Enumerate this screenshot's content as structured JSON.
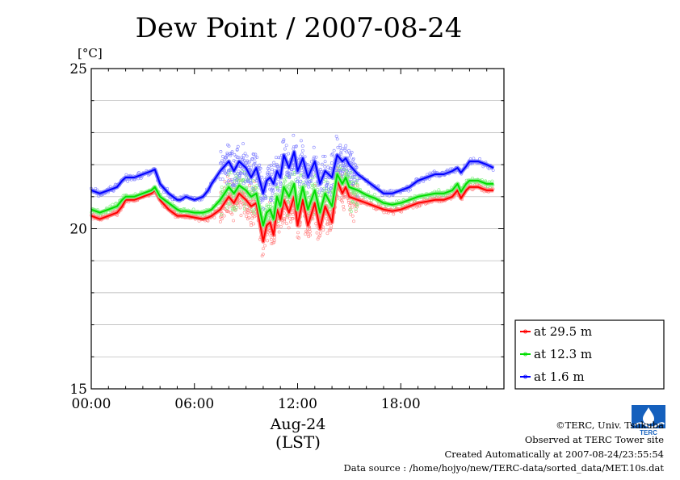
{
  "chart_data": {
    "type": "line",
    "title": "Dew Point / 2007-08-24",
    "ylabel": "[°C]",
    "xlabel": "Aug-24",
    "xlabel2": "(LST)",
    "ylim": [
      15,
      25
    ],
    "xlim": [
      0,
      24
    ],
    "y_ticks": [
      "15",
      "20",
      "25"
    ],
    "x_ticks": [
      {
        "h": 0,
        "label": "00:00"
      },
      {
        "h": 6,
        "label": "06:00"
      },
      {
        "h": 12,
        "label": "12:00"
      },
      {
        "h": 18,
        "label": "18:00"
      }
    ],
    "grid": true,
    "legend_position": "bottom-right",
    "series": [
      {
        "name": "at 29.5 m",
        "color": "#ff0000",
        "x": [
          0,
          0.5,
          1,
          1.5,
          1.8,
          2,
          2.5,
          3,
          3.5,
          3.7,
          4,
          4.5,
          5,
          5.2,
          5.5,
          6,
          6.5,
          6.8,
          7,
          7.5,
          8,
          8.3,
          8.6,
          9,
          9.3,
          9.6,
          10,
          10.2,
          10.4,
          10.6,
          10.8,
          11,
          11.2,
          11.5,
          11.8,
          12,
          12.3,
          12.6,
          13,
          13.3,
          13.6,
          14,
          14.3,
          14.6,
          14.8,
          15,
          15.5,
          16,
          16.5,
          17,
          17.5,
          18,
          18.5,
          19,
          19.5,
          20,
          20.5,
          21,
          21.3,
          21.5,
          21.8,
          22,
          22.5,
          23,
          23.4
        ],
        "y": [
          20.4,
          20.3,
          20.4,
          20.5,
          20.7,
          20.9,
          20.9,
          21.0,
          21.1,
          21.2,
          20.9,
          20.6,
          20.4,
          20.4,
          20.4,
          20.35,
          20.3,
          20.35,
          20.4,
          20.6,
          21.0,
          20.8,
          21.1,
          20.9,
          20.7,
          20.8,
          19.6,
          20.1,
          20.2,
          19.8,
          20.6,
          20.3,
          20.9,
          20.5,
          21.0,
          20.1,
          20.9,
          20.1,
          20.8,
          20.0,
          20.7,
          20.2,
          21.5,
          21.1,
          21.3,
          21.0,
          20.9,
          20.8,
          20.7,
          20.6,
          20.55,
          20.6,
          20.7,
          20.8,
          20.85,
          20.9,
          20.9,
          21.0,
          21.2,
          20.95,
          21.2,
          21.3,
          21.3,
          21.2,
          21.2
        ]
      },
      {
        "name": "at 12.3 m",
        "color": "#00dd00",
        "x": [
          0,
          0.5,
          1,
          1.5,
          1.8,
          2,
          2.5,
          3,
          3.5,
          3.7,
          4,
          4.5,
          5,
          5.2,
          5.5,
          6,
          6.5,
          6.8,
          7,
          7.5,
          8,
          8.3,
          8.6,
          9,
          9.3,
          9.6,
          10,
          10.2,
          10.4,
          10.6,
          10.8,
          11,
          11.2,
          11.5,
          11.8,
          12,
          12.3,
          12.6,
          13,
          13.3,
          13.6,
          14,
          14.3,
          14.6,
          14.8,
          15,
          15.5,
          16,
          16.5,
          17,
          17.5,
          18,
          18.5,
          19,
          19.5,
          20,
          20.5,
          21,
          21.3,
          21.5,
          21.8,
          22,
          22.5,
          23,
          23.4
        ],
        "y": [
          20.6,
          20.5,
          20.6,
          20.7,
          20.9,
          21.0,
          21.0,
          21.1,
          21.2,
          21.3,
          21.0,
          20.8,
          20.6,
          20.55,
          20.55,
          20.5,
          20.5,
          20.55,
          20.6,
          20.9,
          21.3,
          21.1,
          21.35,
          21.2,
          21.0,
          21.1,
          20.1,
          20.5,
          20.6,
          20.3,
          21.0,
          20.7,
          21.3,
          21.0,
          21.4,
          20.6,
          21.3,
          20.6,
          21.2,
          20.5,
          21.1,
          20.7,
          21.7,
          21.4,
          21.6,
          21.3,
          21.2,
          21.05,
          20.95,
          20.8,
          20.75,
          20.8,
          20.9,
          21.0,
          21.05,
          21.1,
          21.1,
          21.2,
          21.4,
          21.15,
          21.4,
          21.5,
          21.5,
          21.4,
          21.4
        ]
      },
      {
        "name": "at 1.6 m",
        "color": "#0000ff",
        "x": [
          0,
          0.5,
          1,
          1.5,
          1.8,
          2,
          2.5,
          3,
          3.5,
          3.7,
          4,
          4.5,
          5,
          5.2,
          5.5,
          6,
          6.5,
          6.8,
          7,
          7.5,
          8,
          8.3,
          8.6,
          9,
          9.3,
          9.6,
          10,
          10.2,
          10.4,
          10.6,
          10.8,
          11,
          11.2,
          11.5,
          11.8,
          12,
          12.3,
          12.6,
          13,
          13.3,
          13.6,
          14,
          14.3,
          14.6,
          14.8,
          15,
          15.5,
          16,
          16.5,
          17,
          17.5,
          18,
          18.5,
          19,
          19.5,
          20,
          20.5,
          21,
          21.3,
          21.5,
          21.8,
          22,
          22.5,
          23,
          23.4
        ],
        "y": [
          21.2,
          21.1,
          21.2,
          21.3,
          21.5,
          21.6,
          21.6,
          21.7,
          21.8,
          21.85,
          21.4,
          21.1,
          20.9,
          20.9,
          21.0,
          20.9,
          21.0,
          21.2,
          21.4,
          21.8,
          22.1,
          21.8,
          22.1,
          21.9,
          21.6,
          21.9,
          21.1,
          21.5,
          21.6,
          21.4,
          21.8,
          21.6,
          22.3,
          21.9,
          22.4,
          21.8,
          22.2,
          21.6,
          22.1,
          21.4,
          21.8,
          21.6,
          22.3,
          22.1,
          22.2,
          22.0,
          21.7,
          21.5,
          21.3,
          21.1,
          21.1,
          21.2,
          21.3,
          21.5,
          21.6,
          21.7,
          21.7,
          21.8,
          21.9,
          21.75,
          21.95,
          22.1,
          22.1,
          22.0,
          21.9
        ]
      }
    ]
  },
  "footer": {
    "copyright": "©TERC, Univ. Tsukuba",
    "observed": "Observed at TERC Tower site",
    "created": "Created Automatically at 2007-08-24/23:55:54",
    "source": "Data source : /home/hojyo/new/TERC-data/sorted_data/MET.10s.dat"
  },
  "logo": {
    "text": "TERC",
    "color": "#1560bd",
    "icon": "terc-logo-icon"
  }
}
